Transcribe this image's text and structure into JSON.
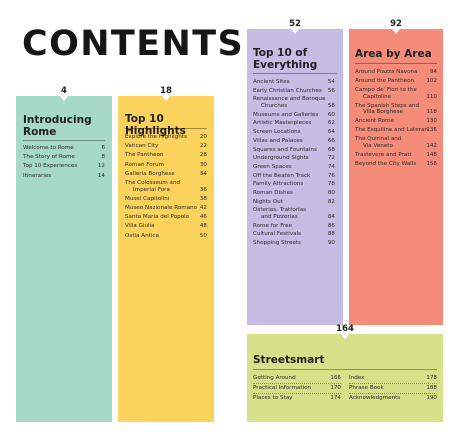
{
  "heading": "CONTENTS",
  "sections": {
    "introducing": {
      "page": "4",
      "title_lines": [
        "Introducing",
        "Rome"
      ],
      "entries": [
        {
          "label": "Welcome to Rome",
          "page": "6"
        },
        {
          "label": "The Story of Rome",
          "page": "8"
        },
        {
          "label": "Top 10 Experiences",
          "page": "12"
        },
        {
          "label": "Itineraries",
          "page": "14"
        }
      ]
    },
    "highlights": {
      "page": "18",
      "title_lines": [
        "Top 10 Highlights"
      ],
      "entries": [
        {
          "label": "Explore the Highlights",
          "page": "20"
        },
        {
          "label": "Vatican City",
          "page": "22"
        },
        {
          "label": "The Pantheon",
          "page": "28"
        },
        {
          "label": "Roman Forum",
          "page": "30"
        },
        {
          "label": "Galleria Borghese",
          "page": "34"
        },
        {
          "label": "The Colosseum and",
          "label2": "Imperial Fora",
          "page": "36"
        },
        {
          "label": "Musei Capitolini",
          "page": "38"
        },
        {
          "label": "Museo Nazionale Romano",
          "page": "42"
        },
        {
          "label": "Santa Maria del Popolo",
          "page": "46"
        },
        {
          "label": "Villa Giulia",
          "page": "48"
        },
        {
          "label": "Ostia Antica",
          "page": "50"
        }
      ]
    },
    "everything": {
      "page": "52",
      "title_lines": [
        "Top 10 of",
        "Everything"
      ],
      "entries": [
        {
          "label": "Ancient Sites",
          "page": "54"
        },
        {
          "label": "Early Christian Churches",
          "page": "56"
        },
        {
          "label": "Renaissance and Baroque",
          "label2": "Churches",
          "page": "58"
        },
        {
          "label": "Museums and Galleries",
          "page": "60"
        },
        {
          "label": "Artistic Masterpieces",
          "page": "62"
        },
        {
          "label": "Screen Locations",
          "page": "64"
        },
        {
          "label": "Villas and Palaces",
          "page": "66"
        },
        {
          "label": "Squares and Fountains",
          "page": "68"
        },
        {
          "label": "Underground Sights",
          "page": "72"
        },
        {
          "label": "Green Spaces",
          "page": "74"
        },
        {
          "label": "Off the Beaten Track",
          "page": "76"
        },
        {
          "label": "Family Attractions",
          "page": "78"
        },
        {
          "label": "Roman Dishes",
          "page": "80"
        },
        {
          "label": "Nights Out",
          "page": "82"
        },
        {
          "label": "Osterias, Trattorias",
          "label2": "and Pizzerias",
          "page": "84"
        },
        {
          "label": "Rome for Free",
          "page": "86"
        },
        {
          "label": "Cultural Festivals",
          "page": "88"
        },
        {
          "label": "Shopping Streets",
          "page": "90"
        }
      ]
    },
    "area": {
      "page": "92",
      "title_lines": [
        "Area by Area"
      ],
      "entries": [
        {
          "label": "Around Piazza Navona",
          "page": "94"
        },
        {
          "label": "Around the Pantheon",
          "page": "102"
        },
        {
          "label": "Campo de' Fiori to the",
          "label2": "Capitoline",
          "page": "110"
        },
        {
          "label": "The Spanish Steps and",
          "label2": "Villa Borghese",
          "page": "118"
        },
        {
          "label": "Ancient Rome",
          "page": "130"
        },
        {
          "label": "The Esquiline and Lateran",
          "page": "136"
        },
        {
          "label": "The Quirinal and",
          "label2": "Via Veneto",
          "page": "142"
        },
        {
          "label": "Trastevere and Prati",
          "page": "148"
        },
        {
          "label": "Beyond the City Walls",
          "page": "156"
        }
      ]
    },
    "streetsmart": {
      "page": "164",
      "title_lines": [
        "Streetsmart"
      ],
      "left_entries": [
        {
          "label": "Getting Around",
          "page": "166"
        },
        {
          "label": "Practical Information",
          "page": "170"
        },
        {
          "label": "Places to Stay",
          "page": "174"
        }
      ],
      "right_entries": [
        {
          "label": "Index",
          "page": "178"
        },
        {
          "label": "Phrase Book",
          "page": "188"
        },
        {
          "label": "Acknowledgments",
          "page": "190"
        }
      ]
    }
  },
  "colors": {
    "introducing": "#a6d9c6",
    "highlights": "#fbd35c",
    "everything": "#c7bce3",
    "area": "#f48c79",
    "streetsmart": "#d6e189"
  }
}
